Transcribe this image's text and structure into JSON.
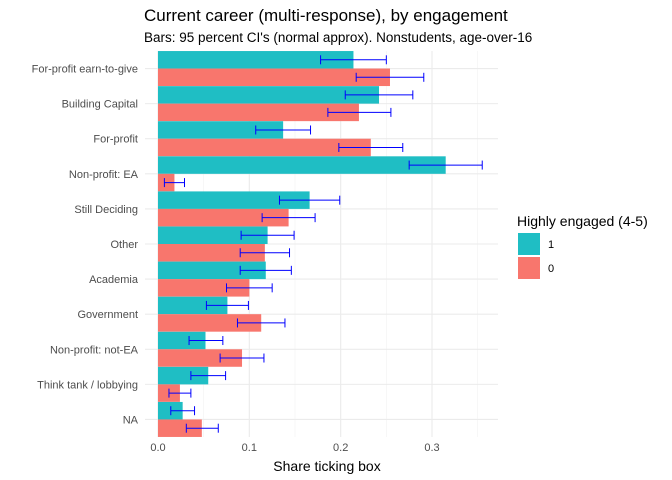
{
  "chart_data": {
    "type": "bar",
    "orientation": "horizontal",
    "title": "Current career (multi-response), by engagement",
    "subtitle": "Bars: 95 percent CI's (normal approx). Nonstudents, age-over-16",
    "xlabel": "Share ticking box",
    "ylabel": "",
    "xlim": [
      0,
      0.35
    ],
    "x_ticks": [
      0.0,
      0.1,
      0.2,
      0.3
    ],
    "x_tick_labels": [
      "0.0",
      "0.1",
      "0.2",
      "0.3"
    ],
    "grid": true,
    "categories": [
      "For-profit earn-to-give",
      "Building Capital",
      "For-profit",
      "Non-profit: EA",
      "Still Deciding",
      "Other",
      "Academia",
      "Government",
      "Non-profit: not-EA",
      "Think tank / lobbying",
      "NA"
    ],
    "series": [
      {
        "name": "1",
        "color": "#1FBEC4",
        "values": [
          0.214,
          0.242,
          0.137,
          0.315,
          0.166,
          0.12,
          0.118,
          0.076,
          0.052,
          0.055,
          0.027
        ],
        "ci_low": [
          0.178,
          0.205,
          0.107,
          0.275,
          0.133,
          0.091,
          0.09,
          0.053,
          0.034,
          0.036,
          0.014
        ],
        "ci_high": [
          0.25,
          0.279,
          0.167,
          0.355,
          0.199,
          0.149,
          0.146,
          0.099,
          0.071,
          0.074,
          0.04
        ]
      },
      {
        "name": "0",
        "color": "#F8766D",
        "values": [
          0.254,
          0.22,
          0.233,
          0.018,
          0.143,
          0.117,
          0.1,
          0.113,
          0.092,
          0.024,
          0.048
        ],
        "ci_low": [
          0.217,
          0.186,
          0.198,
          0.007,
          0.114,
          0.09,
          0.075,
          0.087,
          0.068,
          0.012,
          0.031
        ],
        "ci_high": [
          0.291,
          0.255,
          0.268,
          0.029,
          0.172,
          0.144,
          0.125,
          0.139,
          0.116,
          0.036,
          0.066
        ]
      }
    ],
    "error_bar_color": "#0000FF",
    "legend": {
      "title": "Highly engaged (4-5)",
      "placement": "right"
    }
  }
}
